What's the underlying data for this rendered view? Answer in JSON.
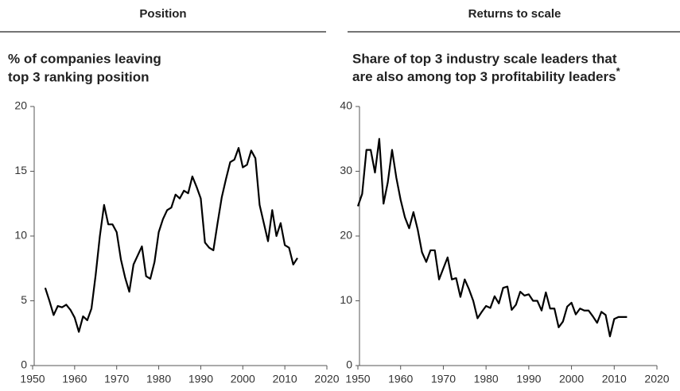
{
  "chart_data": [
    {
      "type": "line",
      "header": "Position",
      "subtitle": [
        "% of companies leaving",
        "top 3 ranking position"
      ],
      "x": [
        1953,
        1954,
        1955,
        1956,
        1957,
        1958,
        1959,
        1960,
        1961,
        1962,
        1963,
        1964,
        1965,
        1966,
        1967,
        1968,
        1969,
        1970,
        1971,
        1972,
        1973,
        1974,
        1975,
        1976,
        1977,
        1978,
        1979,
        1980,
        1981,
        1982,
        1983,
        1984,
        1985,
        1986,
        1987,
        1988,
        1989,
        1990,
        1991,
        1992,
        1993,
        1994,
        1995,
        1996,
        1997,
        1998,
        1999,
        2000,
        2001,
        2002,
        2003,
        2004,
        2005,
        2006,
        2007,
        2008,
        2009,
        2010,
        2011,
        2012,
        2013
      ],
      "values": [
        6.0,
        5.0,
        3.9,
        4.6,
        4.5,
        4.7,
        4.3,
        3.7,
        2.6,
        3.8,
        3.5,
        4.4,
        7.0,
        10.0,
        12.4,
        10.9,
        10.9,
        10.3,
        8.2,
        6.8,
        5.7,
        7.8,
        8.5,
        9.2,
        6.9,
        6.7,
        8.0,
        10.3,
        11.3,
        12.0,
        12.2,
        13.2,
        12.9,
        13.5,
        13.3,
        14.6,
        13.8,
        12.9,
        9.5,
        9.1,
        8.9,
        11.0,
        13.0,
        14.4,
        15.7,
        15.9,
        16.8,
        15.3,
        15.5,
        16.6,
        16.0,
        12.4,
        11.0,
        9.6,
        12.0,
        10.0,
        11.0,
        9.3,
        9.1,
        7.8,
        8.3
      ],
      "color": "#000000",
      "xlim": [
        1950,
        2020
      ],
      "xticks": [
        1950,
        1960,
        1970,
        1980,
        1990,
        2000,
        2010,
        2020
      ],
      "ylim": [
        0,
        20
      ],
      "yticks": [
        0,
        5,
        10,
        15,
        20
      ]
    },
    {
      "type": "line",
      "header": "Returns to scale",
      "subtitle": [
        "Share of top 3 industry scale leaders that",
        "are also among top 3 profitability leaders"
      ],
      "footnote_marker": "*",
      "x": [
        1950,
        1951,
        1952,
        1953,
        1954,
        1955,
        1956,
        1957,
        1958,
        1959,
        1960,
        1961,
        1962,
        1963,
        1964,
        1965,
        1966,
        1967,
        1968,
        1969,
        1970,
        1971,
        1972,
        1973,
        1974,
        1975,
        1976,
        1977,
        1978,
        1979,
        1980,
        1981,
        1982,
        1983,
        1984,
        1985,
        1986,
        1987,
        1988,
        1989,
        1990,
        1991,
        1992,
        1993,
        1994,
        1995,
        1996,
        1997,
        1998,
        1999,
        2000,
        2001,
        2002,
        2003,
        2004,
        2005,
        2006,
        2007,
        2008,
        2009,
        2010,
        2011,
        2012,
        2013
      ],
      "values": [
        24.6,
        26.5,
        33.3,
        33.3,
        29.8,
        35.0,
        25.0,
        28.3,
        33.3,
        29.0,
        25.6,
        22.9,
        21.2,
        23.7,
        21.0,
        17.5,
        16.0,
        17.8,
        17.8,
        13.3,
        15.0,
        16.7,
        13.3,
        13.5,
        10.6,
        13.3,
        11.8,
        10.0,
        7.3,
        8.3,
        9.2,
        8.9,
        10.7,
        9.6,
        12.0,
        12.2,
        8.6,
        9.4,
        11.4,
        10.8,
        11.0,
        10.0,
        10.0,
        8.5,
        11.3,
        8.8,
        8.8,
        5.9,
        6.8,
        9.1,
        9.7,
        7.9,
        8.8,
        8.5,
        8.5,
        7.6,
        6.6,
        8.3,
        7.8,
        4.5,
        7.2,
        7.5,
        7.5,
        7.5
      ],
      "color": "#000000",
      "xlim": [
        1950,
        2020
      ],
      "xticks": [
        1950,
        1960,
        1970,
        1980,
        1990,
        2000,
        2010,
        2020
      ],
      "ylim": [
        0,
        40
      ],
      "yticks": [
        0,
        10,
        20,
        30,
        40
      ]
    }
  ]
}
